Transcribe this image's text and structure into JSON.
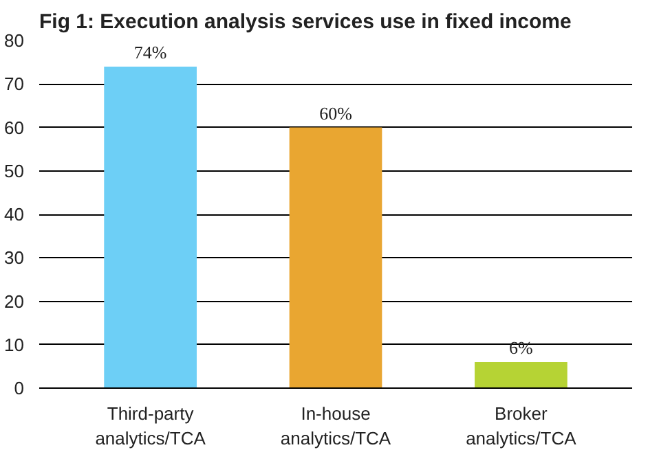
{
  "chart_data": {
    "type": "bar",
    "title": "Fig 1: Execution analysis services use in fixed income",
    "categories": [
      "Third-party\nanalytics/TCA",
      "In-house\nanalytics/TCA",
      "Broker\nanalytics/TCA"
    ],
    "values": [
      74,
      60,
      6
    ],
    "colors": [
      "#6dcff6",
      "#e9a631",
      "#b6d334"
    ],
    "value_labels": [
      "74%",
      "60%",
      "6%"
    ],
    "ylim": [
      0,
      80
    ],
    "yticks": [
      0,
      10,
      20,
      30,
      40,
      50,
      60,
      70,
      80
    ],
    "grid": "y"
  }
}
